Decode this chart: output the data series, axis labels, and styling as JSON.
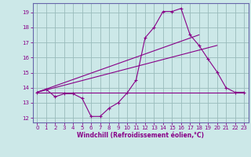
{
  "bg_color": "#cce8e8",
  "grid_color": "#99bbbb",
  "line_color": "#880088",
  "spine_color": "#6666aa",
  "xlim": [
    -0.5,
    23.5
  ],
  "ylim": [
    11.7,
    19.6
  ],
  "xticks": [
    0,
    1,
    2,
    3,
    4,
    5,
    6,
    7,
    8,
    9,
    10,
    11,
    12,
    13,
    14,
    15,
    16,
    17,
    18,
    19,
    20,
    21,
    22,
    23
  ],
  "yticks": [
    12,
    13,
    14,
    15,
    16,
    17,
    18,
    19
  ],
  "xlabel": "Windchill (Refroidissement éolien,°C)",
  "curve_x": [
    0,
    1,
    2,
    3,
    4,
    5,
    6,
    7,
    8,
    9,
    10,
    11,
    12,
    13,
    14,
    15,
    16,
    17,
    18,
    19,
    20,
    21,
    22,
    23
  ],
  "curve_y": [
    13.7,
    13.9,
    13.4,
    13.6,
    13.6,
    13.3,
    12.1,
    12.1,
    12.65,
    13.0,
    13.65,
    14.5,
    17.3,
    18.0,
    19.05,
    19.05,
    19.25,
    17.5,
    16.8,
    15.9,
    15.05,
    14.0,
    13.7,
    13.7
  ],
  "line1_x": [
    0,
    23
  ],
  "line1_y": [
    13.7,
    13.7
  ],
  "line2_x": [
    0,
    20
  ],
  "line2_y": [
    13.7,
    16.8
  ],
  "line3_x": [
    0,
    18
  ],
  "line3_y": [
    13.7,
    17.5
  ]
}
